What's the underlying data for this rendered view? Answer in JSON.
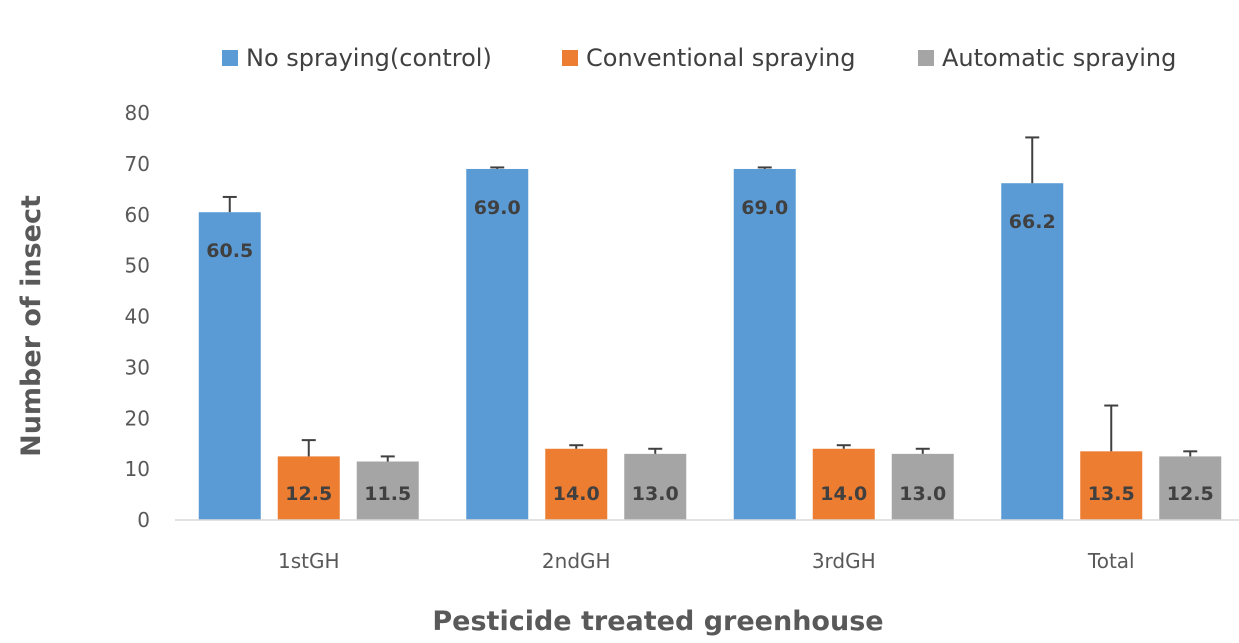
{
  "chart_data": {
    "type": "bar",
    "title": "",
    "xlabel": "Pesticide treated greenhouse",
    "ylabel": "Number of insect",
    "categories": [
      "1stGH",
      "2ndGH",
      "3rdGH",
      "Total"
    ],
    "ylim": [
      0,
      80
    ],
    "yticks": [
      0,
      10,
      20,
      30,
      40,
      50,
      60,
      70,
      80
    ],
    "grid": false,
    "legend_position": "top",
    "series": [
      {
        "name": "No spraying(control)",
        "color": "#5B9BD5",
        "values": [
          60.5,
          69.0,
          69.0,
          66.2
        ],
        "labels": [
          "60.5",
          "69.0",
          "69.0",
          "66.2"
        ],
        "error": [
          3.0,
          0.3,
          0.3,
          9.0
        ]
      },
      {
        "name": "Conventional spraying",
        "color": "#ED7D31",
        "values": [
          12.5,
          14.0,
          14.0,
          13.5
        ],
        "labels": [
          "12.5",
          "14.0",
          "14.0",
          "13.5"
        ],
        "error": [
          3.2,
          0.7,
          0.7,
          9.0
        ]
      },
      {
        "name": "Automatic spraying",
        "color": "#A5A5A5",
        "values": [
          11.5,
          13.0,
          13.0,
          12.5
        ],
        "labels": [
          "11.5",
          "13.0",
          "13.0",
          "12.5"
        ],
        "error": [
          1.0,
          1.0,
          1.0,
          1.0
        ]
      }
    ]
  }
}
